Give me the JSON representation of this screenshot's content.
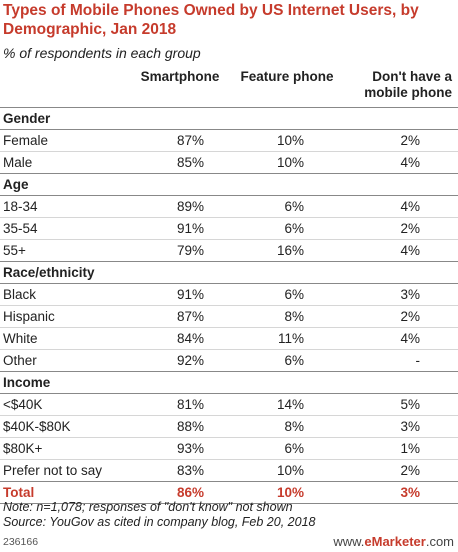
{
  "chart_data": {
    "type": "table",
    "title": "Types of Mobile Phones Owned by US Internet Users, by Demographic, Jan 2018",
    "subtitle": "% of respondents in each group",
    "columns": [
      "Smartphone",
      "Feature phone",
      "Don't have a mobile phone"
    ],
    "groups": [
      {
        "name": "Gender",
        "rows": [
          {
            "label": "Female",
            "values": [
              "87%",
              "10%",
              "2%"
            ]
          },
          {
            "label": "Male",
            "values": [
              "85%",
              "10%",
              "4%"
            ]
          }
        ]
      },
      {
        "name": "Age",
        "rows": [
          {
            "label": "18-34",
            "values": [
              "89%",
              "6%",
              "4%"
            ]
          },
          {
            "label": "35-54",
            "values": [
              "91%",
              "6%",
              "2%"
            ]
          },
          {
            "label": "55+",
            "values": [
              "79%",
              "16%",
              "4%"
            ]
          }
        ]
      },
      {
        "name": "Race/ethnicity",
        "rows": [
          {
            "label": "Black",
            "values": [
              "91%",
              "6%",
              "3%"
            ]
          },
          {
            "label": "Hispanic",
            "values": [
              "87%",
              "8%",
              "2%"
            ]
          },
          {
            "label": "White",
            "values": [
              "84%",
              "11%",
              "4%"
            ]
          },
          {
            "label": "Other",
            "values": [
              "92%",
              "6%",
              "-"
            ]
          }
        ]
      },
      {
        "name": "Income",
        "rows": [
          {
            "label": "<$40K",
            "values": [
              "81%",
              "14%",
              "5%"
            ]
          },
          {
            "label": "$40K-$80K",
            "values": [
              "88%",
              "8%",
              "3%"
            ]
          },
          {
            "label": "$80K+",
            "values": [
              "93%",
              "6%",
              "1%"
            ]
          },
          {
            "label": "Prefer not to say",
            "values": [
              "83%",
              "10%",
              "2%"
            ]
          }
        ]
      }
    ],
    "total": {
      "label": "Total",
      "values": [
        "86%",
        "10%",
        "3%"
      ]
    },
    "note": "Note: n=1,078; responses of \"don't know\" not shown",
    "source": "Source: YouGov as cited in company blog, Feb 20, 2018",
    "chart_id": "236166",
    "brand": {
      "prefix": "www.",
      "name": "eMarketer",
      "suffix": ".com"
    },
    "colors": {
      "accent": "#c63b2c",
      "text": "#222222"
    }
  }
}
